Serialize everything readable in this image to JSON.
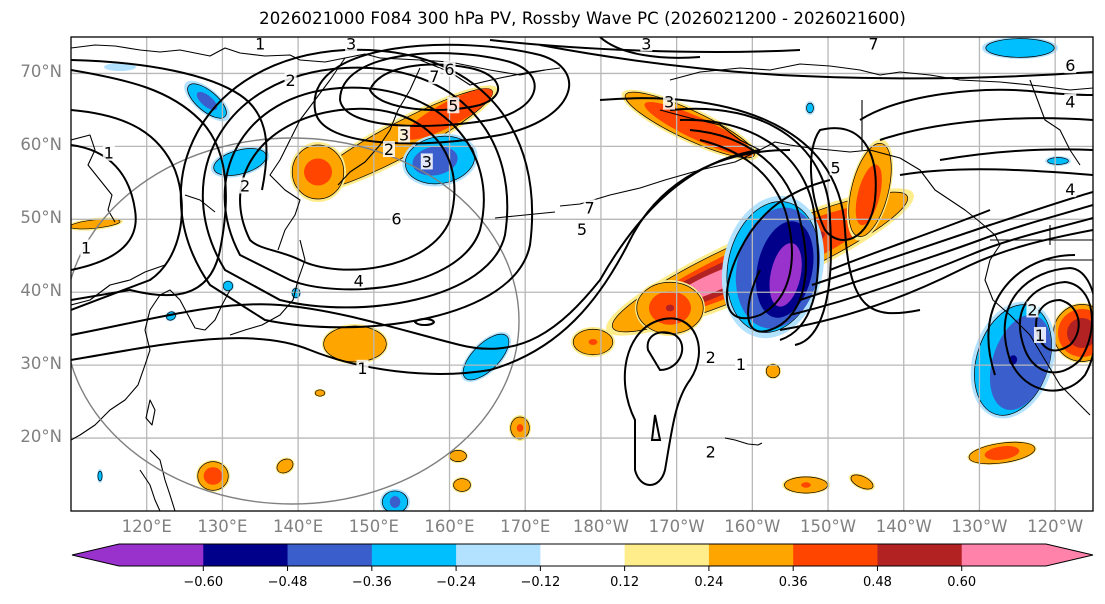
{
  "title": "2026021000 F084 300 hPa PV, Rossby Wave PC (2026021200 - 2026021600)",
  "map": {
    "projection": "PlateCarree (central longitude 180)",
    "extent_lon": [
      110,
      245
    ],
    "extent_lat": [
      10,
      75
    ],
    "lat_ticks": [
      {
        "value": 70,
        "label": "70°N"
      },
      {
        "value": 60,
        "label": "60°N"
      },
      {
        "value": 50,
        "label": "50°N"
      },
      {
        "value": 40,
        "label": "40°N"
      },
      {
        "value": 30,
        "label": "30°N"
      },
      {
        "value": 20,
        "label": "20°N"
      }
    ],
    "lon_ticks": [
      {
        "value": 120,
        "label": "120°E"
      },
      {
        "value": 130,
        "label": "130°E"
      },
      {
        "value": 140,
        "label": "140°E"
      },
      {
        "value": 150,
        "label": "150°E"
      },
      {
        "value": 160,
        "label": "160°E"
      },
      {
        "value": 170,
        "label": "170°E"
      },
      {
        "value": 180,
        "label": "180°W"
      },
      {
        "value": 190,
        "label": "170°W"
      },
      {
        "value": 200,
        "label": "160°W"
      },
      {
        "value": 210,
        "label": "150°W"
      },
      {
        "value": 220,
        "label": "140°W"
      },
      {
        "value": 230,
        "label": "130°W"
      },
      {
        "value": 240,
        "label": "120°W"
      }
    ],
    "contour_labels": [
      {
        "text": "1",
        "lon": 135,
        "lat": 74
      },
      {
        "text": "2",
        "lon": 139,
        "lat": 69
      },
      {
        "text": "3",
        "lon": 147,
        "lat": 74
      },
      {
        "text": "3",
        "lon": 186,
        "lat": 74
      },
      {
        "text": "7",
        "lon": 216,
        "lat": 74
      },
      {
        "text": "6",
        "lon": 160,
        "lat": 70.5
      },
      {
        "text": "7",
        "lon": 158,
        "lat": 69.5
      },
      {
        "text": "5",
        "lon": 160.5,
        "lat": 65.5
      },
      {
        "text": "3",
        "lon": 189,
        "lat": 66
      },
      {
        "text": "3",
        "lon": 154,
        "lat": 61.5
      },
      {
        "text": "2",
        "lon": 152,
        "lat": 59.5
      },
      {
        "text": "3",
        "lon": 157,
        "lat": 57.8
      },
      {
        "text": "2",
        "lon": 133,
        "lat": 54.5
      },
      {
        "text": "6",
        "lon": 153,
        "lat": 50
      },
      {
        "text": "7",
        "lon": 178.5,
        "lat": 51.5
      },
      {
        "text": "5",
        "lon": 177.5,
        "lat": 48.5
      },
      {
        "text": "4",
        "lon": 148,
        "lat": 41.5
      },
      {
        "text": "1",
        "lon": 112,
        "lat": 46
      },
      {
        "text": "1",
        "lon": 115,
        "lat": 59
      },
      {
        "text": "1",
        "lon": 148.5,
        "lat": 29.5
      },
      {
        "text": "5",
        "lon": 211,
        "lat": 57
      },
      {
        "text": "6",
        "lon": 242,
        "lat": 71
      },
      {
        "text": "4",
        "lon": 242,
        "lat": 66
      },
      {
        "text": "4",
        "lon": 242,
        "lat": 54
      },
      {
        "text": "2",
        "lon": 194.5,
        "lat": 31
      },
      {
        "text": "1",
        "lon": 198.5,
        "lat": 30
      },
      {
        "text": "2",
        "lon": 194.5,
        "lat": 18
      },
      {
        "text": "2",
        "lon": 237,
        "lat": 37.5
      },
      {
        "text": "1",
        "lon": 238,
        "lat": 34
      }
    ]
  },
  "colorbar": {
    "colors": [
      "#9932CC",
      "#00008B",
      "#3A5FCD",
      "#00BFFF",
      "#B2E2FF",
      "#FFFFFF",
      "#FFEC8B",
      "#FFA500",
      "#FF4500",
      "#B22222",
      "#FF82AB"
    ],
    "levels": [
      -0.6,
      -0.48,
      -0.36,
      -0.24,
      -0.12,
      0.12,
      0.24,
      0.36,
      0.48,
      0.6
    ],
    "tick_labels": [
      "−0.60",
      "−0.48",
      "−0.36",
      "−0.24",
      "−0.12",
      "0.12",
      "0.24",
      "0.36",
      "0.48",
      "0.60"
    ],
    "extend": "both"
  }
}
